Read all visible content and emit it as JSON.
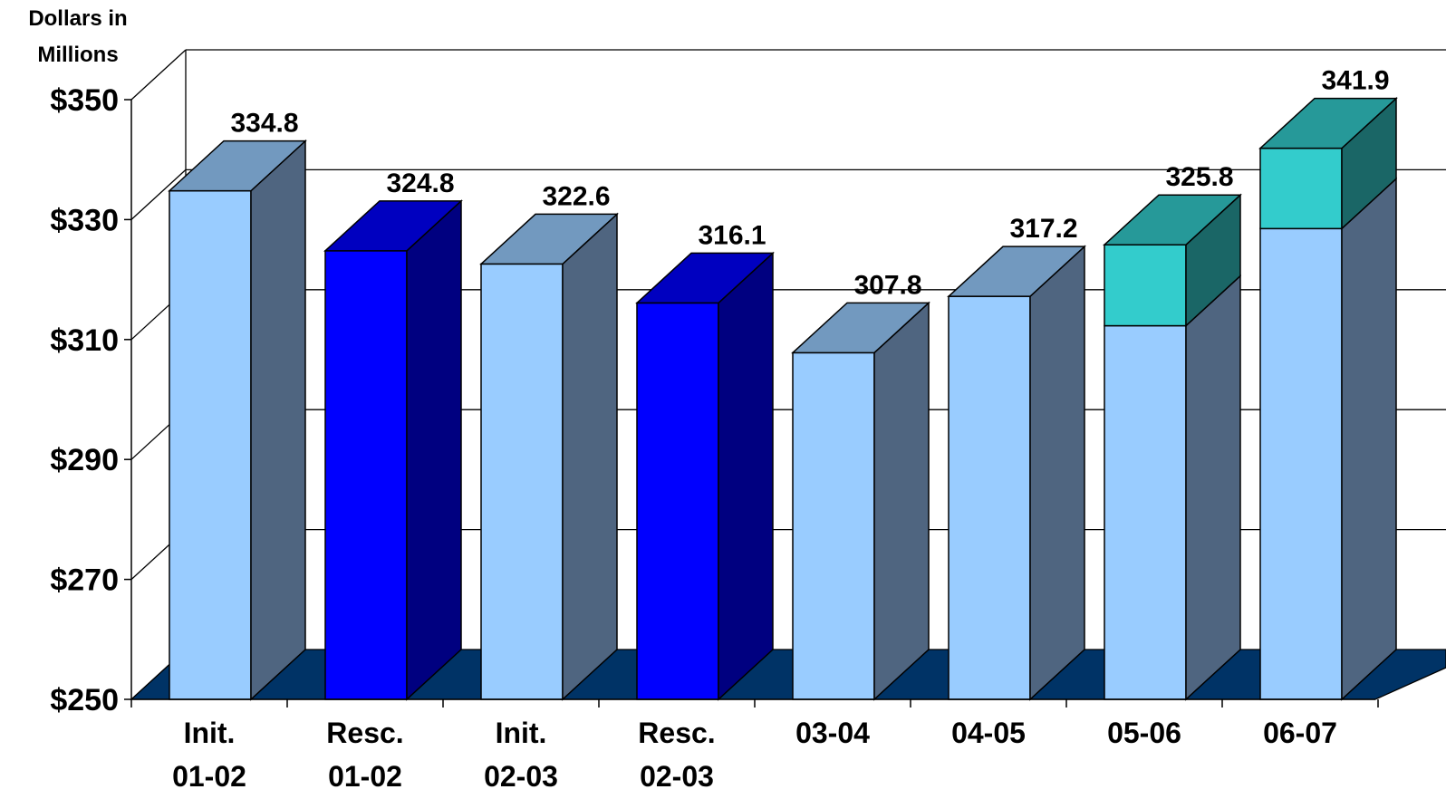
{
  "chart_data": {
    "type": "bar",
    "ylabel": "Dollars in\nMillions",
    "ylabel_lines": [
      "Dollars in",
      "Millions"
    ],
    "ylim": [
      250,
      350
    ],
    "yticks": [
      250,
      270,
      290,
      310,
      330,
      350
    ],
    "ytick_labels": [
      "$250",
      "$270",
      "$290",
      "$310",
      "$330",
      "$350"
    ],
    "grid": true,
    "categories": [
      [
        "Init.",
        "01-02"
      ],
      [
        "Resc.",
        "01-02"
      ],
      [
        "Init.",
        "02-03"
      ],
      [
        "Resc.",
        "02-03"
      ],
      [
        "03-04"
      ],
      [
        "04-05"
      ],
      [
        "05-06"
      ],
      [
        "06-07"
      ]
    ],
    "bars": [
      {
        "total": 334.8,
        "label": "334.8",
        "style": "light"
      },
      {
        "total": 324.8,
        "label": "324.8",
        "style": "blue"
      },
      {
        "total": 322.6,
        "label": "322.6",
        "style": "light"
      },
      {
        "total": 316.1,
        "label": "316.1",
        "style": "blue"
      },
      {
        "total": 307.8,
        "label": "307.8",
        "style": "light"
      },
      {
        "total": 317.2,
        "label": "317.2",
        "style": "light"
      },
      {
        "total": 325.8,
        "label": "325.8",
        "style": "light",
        "stack_base": 312.3
      },
      {
        "total": 341.9,
        "label": "341.9",
        "style": "light",
        "stack_base": 328.5
      }
    ],
    "colors": {
      "light_front": "#99ccff",
      "light_side": "#4f6580",
      "light_top": "#7299bf",
      "blue_front": "#0000ff",
      "blue_side": "#000080",
      "blue_top": "#0000c0",
      "teal_front": "#33cccc",
      "teal_side": "#1a6666",
      "teal_top": "#269999",
      "floor": "#003366",
      "axis": "#000000"
    }
  }
}
